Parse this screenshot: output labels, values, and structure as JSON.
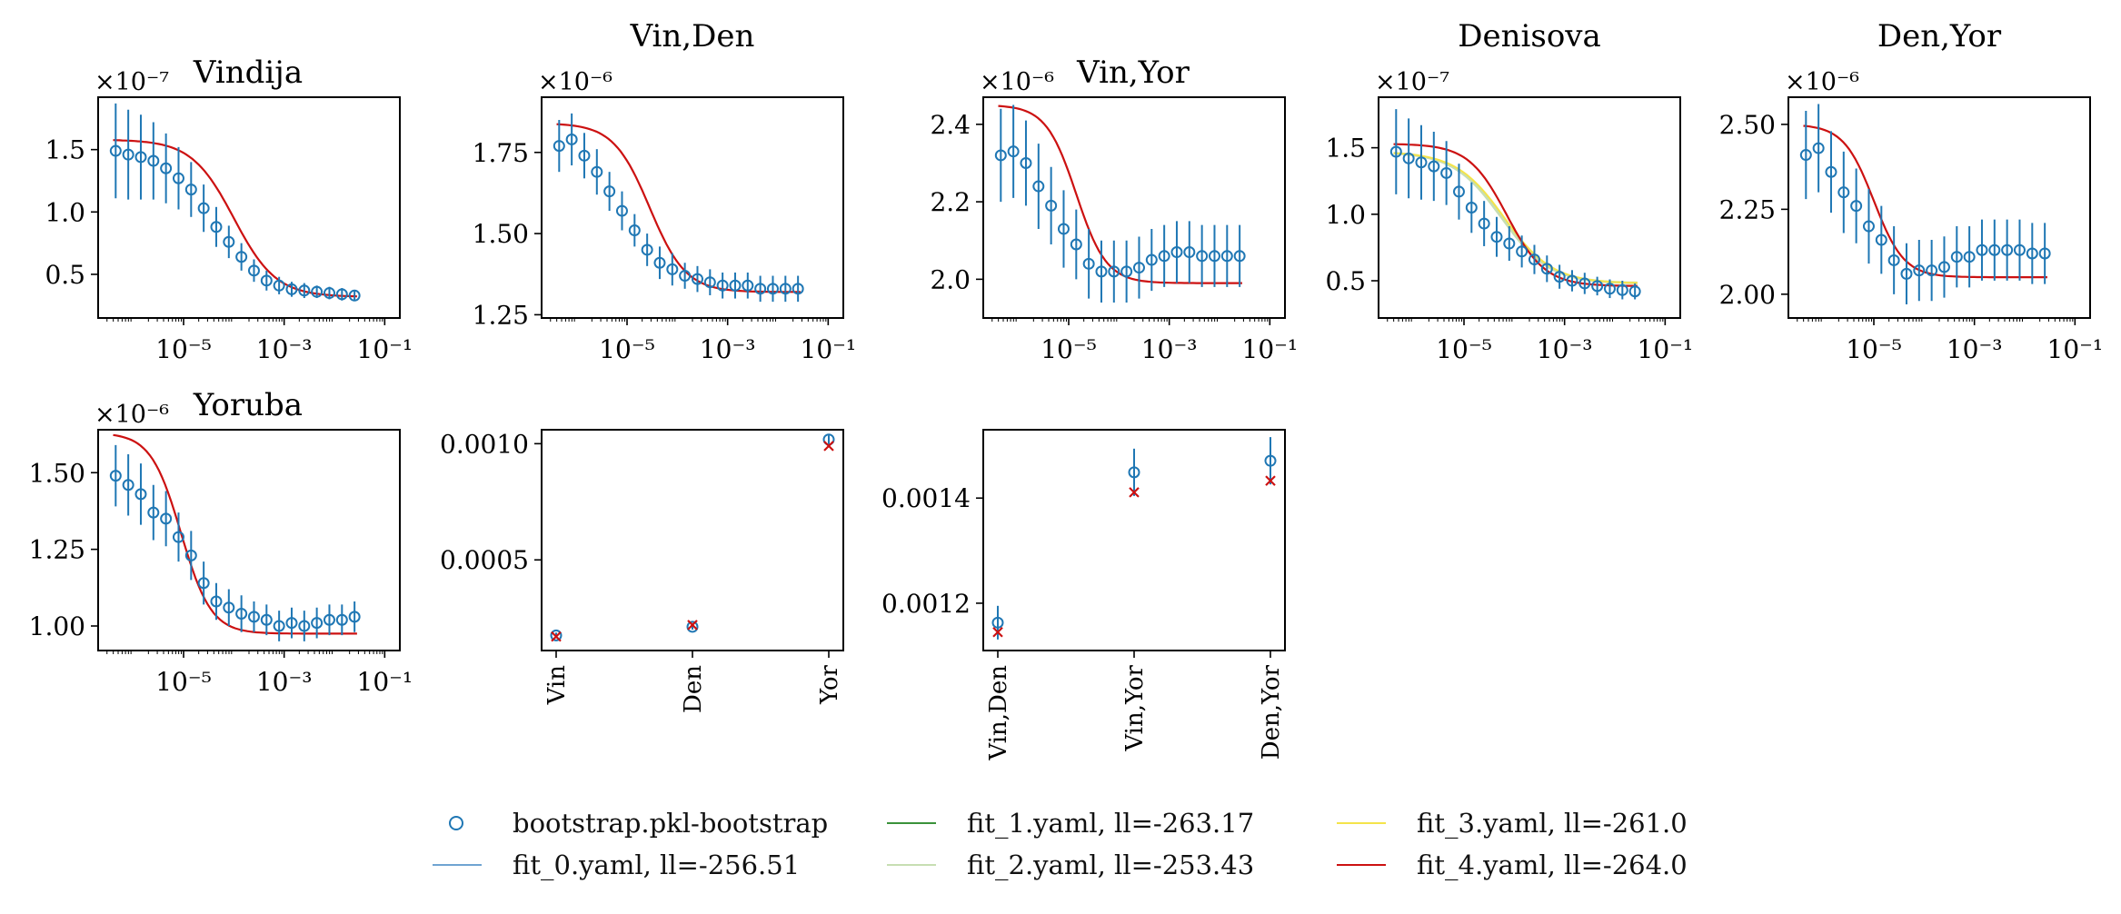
{
  "figure": {
    "background": "#ffffff"
  },
  "colors": {
    "bootstrap": "#1f77b4",
    "fit_0": "#6fa4d2",
    "fit_1": "#3a923a",
    "fit_2": "#c7deb3",
    "fit_3": "#f4e44a",
    "fit_4": "#cc1111"
  },
  "legend": {
    "position": "bottom-center",
    "entries": [
      {
        "key": "bootstrap",
        "label": "bootstrap.pkl-bootstrap",
        "style": "marker"
      },
      {
        "key": "fit_0",
        "label": "fit_0.yaml, ll=-256.51",
        "style": "line"
      },
      {
        "key": "fit_1",
        "label": "fit_1.yaml, ll=-263.17",
        "style": "line"
      },
      {
        "key": "fit_2",
        "label": "fit_2.yaml, ll=-253.43",
        "style": "line"
      },
      {
        "key": "fit_3",
        "label": "fit_3.yaml, ll=-261.0",
        "style": "line"
      },
      {
        "key": "fit_4",
        "label": "fit_4.yaml, ll=-264.0",
        "style": "line"
      }
    ]
  },
  "chart_data": [
    {
      "id": "vindija",
      "type": "scatter",
      "title": "Vindija",
      "xscale": "log",
      "xlim": [
        2e-07,
        0.2
      ],
      "ylim": [
        0.15,
        1.92
      ],
      "scale_label": "×10⁻⁷",
      "xticks": [
        1e-05,
        0.001,
        0.1
      ],
      "xticklabels": [
        "10⁻⁵",
        "10⁻³",
        "10⁻¹"
      ],
      "yticks": [
        0.5,
        1.0,
        1.5
      ],
      "yticklabels": [
        "0.5",
        "1.0",
        "1.5"
      ],
      "x_logstart": -6.35,
      "x_logstep": 0.25,
      "bootstrap": [
        1.49,
        1.46,
        1.44,
        1.41,
        1.35,
        1.27,
        1.18,
        1.03,
        0.88,
        0.76,
        0.64,
        0.53,
        0.45,
        0.41,
        0.38,
        0.37,
        0.36,
        0.35,
        0.34,
        0.33
      ],
      "err": [
        0.38,
        0.36,
        0.34,
        0.31,
        0.28,
        0.25,
        0.22,
        0.19,
        0.16,
        0.13,
        0.11,
        0.09,
        0.08,
        0.07,
        0.06,
        0.06,
        0.05,
        0.05,
        0.05,
        0.04
      ],
      "fit": {
        "top": 1.58,
        "bot": 0.32,
        "mid": -4.0,
        "w": 0.42
      }
    },
    {
      "id": "vin-den",
      "type": "scatter",
      "title": "Vin,Den",
      "xscale": "log",
      "xlim": [
        2e-07,
        0.2
      ],
      "ylim": [
        1.24,
        1.92
      ],
      "scale_label": "×10⁻⁶",
      "xticks": [
        1e-05,
        0.001,
        0.1
      ],
      "xticklabels": [
        "10⁻⁵",
        "10⁻³",
        "10⁻¹"
      ],
      "yticks": [
        1.25,
        1.5,
        1.75
      ],
      "yticklabels": [
        "1.25",
        "1.50",
        "1.75"
      ],
      "x_logstart": -6.35,
      "x_logstep": 0.25,
      "bootstrap": [
        1.77,
        1.79,
        1.74,
        1.69,
        1.63,
        1.57,
        1.51,
        1.45,
        1.41,
        1.39,
        1.37,
        1.36,
        1.35,
        1.34,
        1.34,
        1.34,
        1.33,
        1.33,
        1.33,
        1.33
      ],
      "err": [
        0.08,
        0.08,
        0.07,
        0.07,
        0.06,
        0.06,
        0.05,
        0.05,
        0.05,
        0.05,
        0.04,
        0.04,
        0.04,
        0.04,
        0.04,
        0.04,
        0.04,
        0.04,
        0.04,
        0.04
      ],
      "fit": {
        "top": 1.84,
        "bot": 1.32,
        "mid": -4.55,
        "w": 0.36
      }
    },
    {
      "id": "vin-yor",
      "type": "scatter",
      "title": "Vin,Yor",
      "xscale": "log",
      "xlim": [
        2e-07,
        0.2
      ],
      "ylim": [
        1.9,
        2.47
      ],
      "scale_label": "×10⁻⁶",
      "xticks": [
        1e-05,
        0.001,
        0.1
      ],
      "xticklabels": [
        "10⁻⁵",
        "10⁻³",
        "10⁻¹"
      ],
      "yticks": [
        2.0,
        2.2,
        2.4
      ],
      "yticklabels": [
        "2.0",
        "2.2",
        "2.4"
      ],
      "x_logstart": -6.35,
      "x_logstep": 0.25,
      "bootstrap": [
        2.32,
        2.33,
        2.3,
        2.24,
        2.19,
        2.13,
        2.09,
        2.04,
        2.02,
        2.02,
        2.02,
        2.03,
        2.05,
        2.06,
        2.07,
        2.07,
        2.06,
        2.06,
        2.06,
        2.06
      ],
      "err": [
        0.12,
        0.12,
        0.11,
        0.11,
        0.1,
        0.1,
        0.09,
        0.09,
        0.08,
        0.08,
        0.08,
        0.08,
        0.08,
        0.08,
        0.08,
        0.08,
        0.08,
        0.08,
        0.08,
        0.08
      ],
      "fit": {
        "top": 2.45,
        "bot": 1.99,
        "mid": -4.85,
        "w": 0.3
      }
    },
    {
      "id": "denisova",
      "type": "scatter",
      "title": "Denisova",
      "xscale": "log",
      "xlim": [
        2e-07,
        0.2
      ],
      "ylim": [
        0.22,
        1.88
      ],
      "scale_label": "×10⁻⁷",
      "xticks": [
        1e-05,
        0.001,
        0.1
      ],
      "xticklabels": [
        "10⁻⁵",
        "10⁻³",
        "10⁻¹"
      ],
      "yticks": [
        0.5,
        1.0,
        1.5
      ],
      "yticklabels": [
        "0.5",
        "1.0",
        "1.5"
      ],
      "x_logstart": -6.35,
      "x_logstep": 0.25,
      "bootstrap": [
        1.47,
        1.42,
        1.39,
        1.36,
        1.31,
        1.17,
        1.05,
        0.93,
        0.83,
        0.78,
        0.72,
        0.66,
        0.59,
        0.53,
        0.5,
        0.48,
        0.46,
        0.44,
        0.43,
        0.42
      ],
      "err": [
        0.32,
        0.3,
        0.28,
        0.26,
        0.24,
        0.21,
        0.19,
        0.17,
        0.15,
        0.13,
        0.12,
        0.11,
        0.1,
        0.09,
        0.08,
        0.08,
        0.07,
        0.07,
        0.07,
        0.06
      ],
      "fit": {
        "top": 1.53,
        "bot": 0.46,
        "mid": -4.15,
        "w": 0.38
      },
      "fit_alt": {
        "top": 1.47,
        "bot": 0.48,
        "mid": -4.25,
        "w": 0.48
      }
    },
    {
      "id": "den-yor",
      "type": "scatter",
      "title": "Den,Yor",
      "xscale": "log",
      "xlim": [
        2e-07,
        0.2
      ],
      "ylim": [
        1.93,
        2.58
      ],
      "scale_label": "×10⁻⁶",
      "xticks": [
        1e-05,
        0.001,
        0.1
      ],
      "xticklabels": [
        "10⁻⁵",
        "10⁻³",
        "10⁻¹"
      ],
      "yticks": [
        2.0,
        2.25,
        2.5
      ],
      "yticklabels": [
        "2.00",
        "2.25",
        "2.50"
      ],
      "x_logstart": -6.35,
      "x_logstep": 0.25,
      "bootstrap": [
        2.41,
        2.43,
        2.36,
        2.3,
        2.26,
        2.2,
        2.16,
        2.1,
        2.06,
        2.07,
        2.07,
        2.08,
        2.11,
        2.11,
        2.13,
        2.13,
        2.13,
        2.13,
        2.12,
        2.12
      ],
      "err": [
        0.13,
        0.13,
        0.12,
        0.12,
        0.11,
        0.11,
        0.1,
        0.1,
        0.09,
        0.09,
        0.09,
        0.09,
        0.09,
        0.09,
        0.09,
        0.09,
        0.09,
        0.09,
        0.09,
        0.09
      ],
      "fit": {
        "top": 2.5,
        "bot": 2.05,
        "mid": -5.0,
        "w": 0.3
      }
    },
    {
      "id": "yoruba",
      "type": "scatter",
      "title": "Yoruba",
      "xscale": "log",
      "xlim": [
        2e-07,
        0.2
      ],
      "ylim": [
        0.92,
        1.64
      ],
      "scale_label": "×10⁻⁶",
      "xticks": [
        1e-05,
        0.001,
        0.1
      ],
      "xticklabels": [
        "10⁻⁵",
        "10⁻³",
        "10⁻¹"
      ],
      "yticks": [
        1.0,
        1.25,
        1.5
      ],
      "yticklabels": [
        "1.00",
        "1.25",
        "1.50"
      ],
      "x_logstart": -6.35,
      "x_logstep": 0.25,
      "bootstrap": [
        1.49,
        1.46,
        1.43,
        1.37,
        1.35,
        1.29,
        1.23,
        1.14,
        1.08,
        1.06,
        1.04,
        1.03,
        1.02,
        1.0,
        1.01,
        1.0,
        1.01,
        1.02,
        1.02,
        1.03
      ],
      "err": [
        0.1,
        0.1,
        0.1,
        0.09,
        0.09,
        0.08,
        0.08,
        0.07,
        0.06,
        0.06,
        0.06,
        0.05,
        0.05,
        0.05,
        0.05,
        0.05,
        0.05,
        0.05,
        0.05,
        0.05
      ],
      "fit": {
        "top": 1.63,
        "bot": 0.975,
        "mid": -5.05,
        "w": 0.3
      }
    },
    {
      "id": "het-single",
      "type": "scatter",
      "title": "",
      "categories": [
        "Vin",
        "Den",
        "Yor"
      ],
      "ylim": [
        0.00011,
        0.00106
      ],
      "yticks": [
        0.0005,
        0.001
      ],
      "yticklabels": [
        "0.0005",
        "0.0010"
      ],
      "bootstrap": [
        0.000175,
        0.000212,
        0.001018
      ],
      "err": [
        1.2e-05,
        1.2e-05,
        1.8e-05
      ],
      "fit": [
        0.00017,
        0.00022,
        0.00099
      ]
    },
    {
      "id": "het-pairs",
      "type": "scatter",
      "title": "",
      "categories": [
        "Vin,Den",
        "Vin,Yor",
        "Den,Yor"
      ],
      "ylim": [
        0.00111,
        0.00153
      ],
      "yticks": [
        0.0012,
        0.0014
      ],
      "yticklabels": [
        "0.0012",
        "0.0014"
      ],
      "bootstrap": [
        0.001163,
        0.001449,
        0.001471
      ],
      "err": [
        3.2e-05,
        4.5e-05,
        4.5e-05
      ],
      "fit": [
        0.001145,
        0.001411,
        0.001433
      ]
    }
  ]
}
